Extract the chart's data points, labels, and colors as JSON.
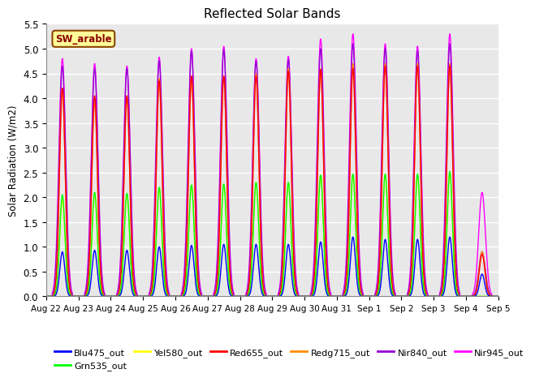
{
  "title": "Reflected Solar Bands",
  "ylabel": "Solar Radiation (W/m2)",
  "ylim": [
    0,
    5.5
  ],
  "yticks": [
    0.0,
    0.5,
    1.0,
    1.5,
    2.0,
    2.5,
    3.0,
    3.5,
    4.0,
    4.5,
    5.0,
    5.5
  ],
  "annotation_text": "SW_arable",
  "annotation_color": "#8B0000",
  "annotation_bg": "#FFFF99",
  "annotation_border": "#8B4500",
  "series": {
    "Blu475_out": {
      "color": "#0000FF",
      "lw": 1.0
    },
    "Grn535_out": {
      "color": "#00FF00",
      "lw": 1.0
    },
    "Yel580_out": {
      "color": "#FFFF00",
      "lw": 1.0
    },
    "Red655_out": {
      "color": "#FF0000",
      "lw": 1.0
    },
    "Redg715_out": {
      "color": "#FF8C00",
      "lw": 1.0
    },
    "Nir840_out": {
      "color": "#9400D3",
      "lw": 1.0
    },
    "Nir945_out": {
      "color": "#FF00FF",
      "lw": 1.0
    }
  },
  "xtick_labels": [
    "Aug 22",
    "Aug 23",
    "Aug 24",
    "Aug 25",
    "Aug 26",
    "Aug 27",
    "Aug 28",
    "Aug 29",
    "Aug 30",
    "Aug 31",
    "Sep 1",
    "Sep 2",
    "Sep 3",
    "Sep 4",
    "Sep 5"
  ],
  "n_days": 14,
  "background_color": "#E8E8E8",
  "grid_color": "#FFFFFF",
  "legend_order": [
    "Blu475_out",
    "Grn535_out",
    "Yel580_out",
    "Red655_out",
    "Redg715_out",
    "Nir840_out",
    "Nir945_out"
  ]
}
